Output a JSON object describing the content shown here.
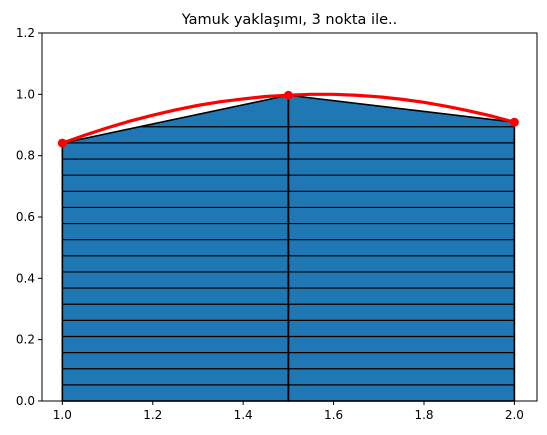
{
  "chart_data": {
    "type": "area",
    "title": "Yamuk yaklaşımı, 3 nokta ile..",
    "xlabel": "",
    "ylabel": "",
    "xlim": [
      0.955,
      2.05
    ],
    "ylim": [
      0,
      1.2
    ],
    "grid": false,
    "x_ticks": [
      1.0,
      1.2,
      1.4,
      1.6,
      1.8,
      2.0
    ],
    "x_tick_labels": [
      "1.0",
      "1.2",
      "1.4",
      "1.6",
      "1.8",
      "2.0"
    ],
    "y_ticks": [
      0.0,
      0.2,
      0.4,
      0.6,
      0.8,
      1.0,
      1.2
    ],
    "y_tick_labels": [
      "0.0",
      "0.2",
      "0.4",
      "0.6",
      "0.8",
      "1.0",
      "1.2"
    ],
    "nodes": {
      "x": [
        1.0,
        1.5,
        2.0
      ],
      "y": [
        0.841,
        0.997,
        0.909
      ]
    },
    "curve": {
      "x": [
        1.0,
        1.05,
        1.1,
        1.15,
        1.2,
        1.25,
        1.3,
        1.35,
        1.4,
        1.45,
        1.5,
        1.55,
        1.6,
        1.65,
        1.7,
        1.75,
        1.8,
        1.85,
        1.9,
        1.95,
        2.0
      ],
      "y": [
        0.841,
        0.867,
        0.891,
        0.913,
        0.932,
        0.949,
        0.964,
        0.976,
        0.985,
        0.993,
        0.997,
        1.0,
        1.0,
        0.997,
        0.992,
        0.984,
        0.974,
        0.961,
        0.946,
        0.929,
        0.909
      ]
    },
    "hatch_levels": [
      0.0,
      0.0526,
      0.1052,
      0.1578,
      0.2104,
      0.263,
      0.3156,
      0.3682,
      0.4208,
      0.4734,
      0.526,
      0.5786,
      0.6312,
      0.6838,
      0.7364,
      0.789,
      0.8416,
      0.8942
    ],
    "colors": {
      "fill": "#1f77b4",
      "edge": "#000000",
      "curve": "#ff0000"
    }
  }
}
